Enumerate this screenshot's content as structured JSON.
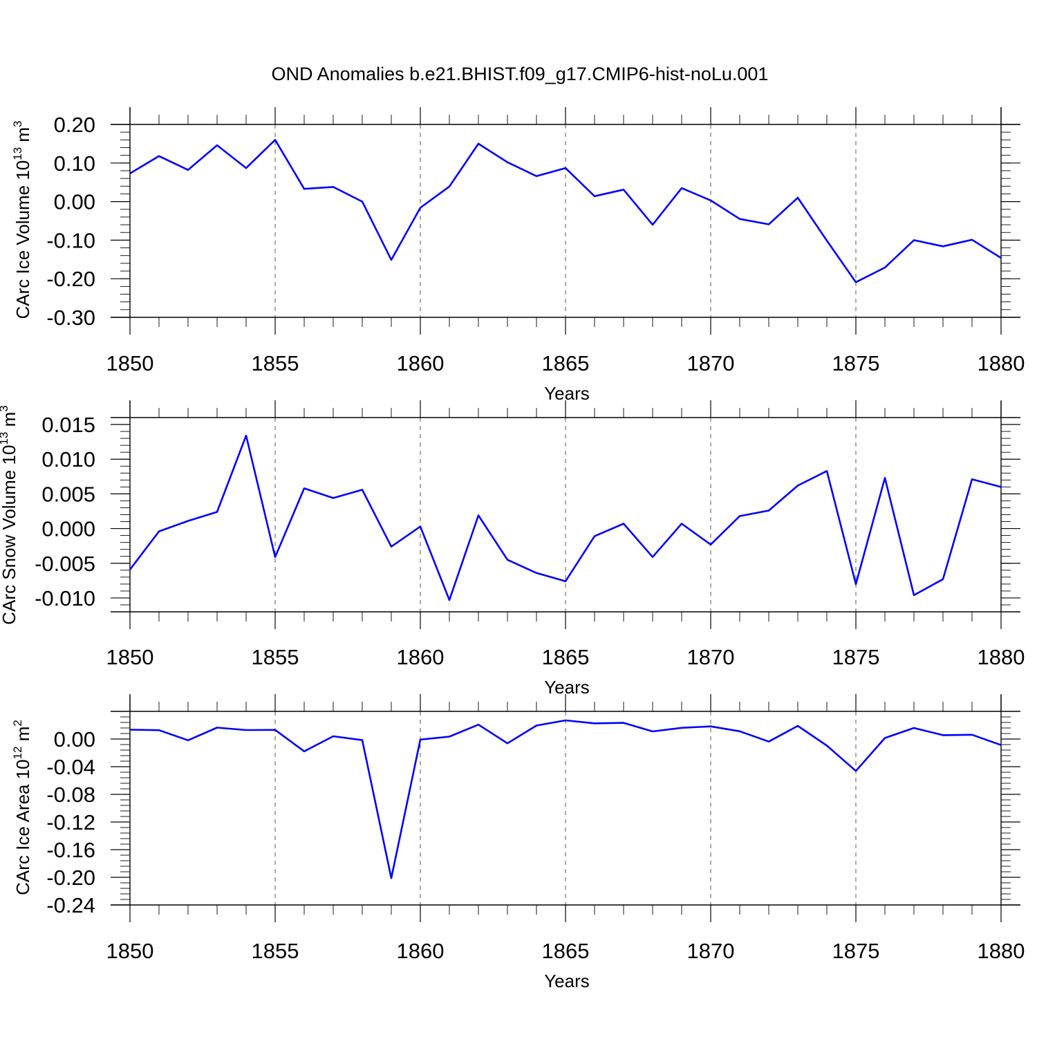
{
  "title": "OND Anomalies b.e21.BHIST.f09_g17.CMIP6-hist-noLu.001",
  "colors": {
    "line": "#0000ff",
    "axis": "#000000",
    "grid": "#555555"
  },
  "chart_data": [
    {
      "type": "line",
      "ylabel": "CArc Ice Volume 10",
      "ylabel_exp": "13",
      "ylabel_unit": " m",
      "ylabel_unit_exp": "3",
      "xlabel": "Years",
      "xlim": [
        1850,
        1880
      ],
      "ylim": [
        -0.3,
        0.2
      ],
      "xticks": [
        1850,
        1855,
        1860,
        1865,
        1870,
        1875,
        1880
      ],
      "xtick_labels": [
        "1850",
        "1855",
        "1860",
        "1865",
        "1870",
        "1875",
        "1880"
      ],
      "yticks": [
        0.2,
        0.1,
        0.0,
        -0.1,
        -0.2,
        -0.3
      ],
      "ytick_labels": [
        "0.20",
        "0.10",
        "0.00",
        "-0.10",
        "-0.20",
        "-0.30"
      ],
      "grid_vertical_dashed": true,
      "series": [
        {
          "x": [
            1850,
            1851,
            1852,
            1853,
            1854,
            1855,
            1856,
            1857,
            1858,
            1859,
            1860,
            1861,
            1862,
            1863,
            1864,
            1865,
            1866,
            1867,
            1868,
            1869,
            1870,
            1871,
            1872,
            1873,
            1874,
            1875,
            1876,
            1877,
            1878,
            1879,
            1880
          ],
          "values": [
            0.073,
            0.118,
            0.082,
            0.146,
            0.087,
            0.16,
            0.033,
            0.038,
            0.0,
            -0.151,
            -0.016,
            0.039,
            0.15,
            0.102,
            0.066,
            0.087,
            0.014,
            0.031,
            -0.06,
            0.035,
            0.003,
            -0.045,
            -0.059,
            0.01,
            -0.101,
            -0.209,
            -0.171,
            -0.1,
            -0.116,
            -0.099,
            -0.146
          ]
        }
      ]
    },
    {
      "type": "line",
      "ylabel": "CArc Snow Volume 10",
      "ylabel_exp": "13",
      "ylabel_unit": " m",
      "ylabel_unit_exp": "3",
      "xlabel": "Years",
      "xlim": [
        1850,
        1880
      ],
      "ylim": [
        -0.012,
        0.016
      ],
      "xticks": [
        1850,
        1855,
        1860,
        1865,
        1870,
        1875,
        1880
      ],
      "xtick_labels": [
        "1850",
        "1855",
        "1860",
        "1865",
        "1870",
        "1875",
        "1880"
      ],
      "yticks": [
        0.015,
        0.01,
        0.005,
        0.0,
        -0.005,
        -0.01
      ],
      "ytick_labels": [
        "0.015",
        "0.010",
        "0.005",
        "0.000",
        "-0.005",
        "-0.010"
      ],
      "grid_vertical_dashed": true,
      "series": [
        {
          "x": [
            1850,
            1851,
            1852,
            1853,
            1854,
            1855,
            1856,
            1857,
            1858,
            1859,
            1860,
            1861,
            1862,
            1863,
            1864,
            1865,
            1866,
            1867,
            1868,
            1869,
            1870,
            1871,
            1872,
            1873,
            1874,
            1875,
            1876,
            1877,
            1878,
            1879,
            1880
          ],
          "values": [
            -0.0059,
            -0.0004,
            0.0011,
            0.0024,
            0.0134,
            -0.0041,
            0.0058,
            0.0044,
            0.0056,
            -0.0026,
            0.0003,
            -0.0103,
            0.0019,
            -0.0045,
            -0.0064,
            -0.0076,
            -0.0011,
            0.0007,
            -0.0041,
            0.0007,
            -0.0023,
            0.0018,
            0.0026,
            0.0062,
            0.0083,
            -0.008,
            0.0073,
            -0.0096,
            -0.0073,
            0.0071,
            0.006
          ]
        }
      ]
    },
    {
      "type": "line",
      "ylabel": "CArc Ice Area 10",
      "ylabel_exp": "12",
      "ylabel_unit": " m",
      "ylabel_unit_exp": "2",
      "xlabel": "Years",
      "xlim": [
        1850,
        1880
      ],
      "ylim": [
        -0.24,
        0.04
      ],
      "xticks": [
        1850,
        1855,
        1860,
        1865,
        1870,
        1875,
        1880
      ],
      "xtick_labels": [
        "1850",
        "1855",
        "1860",
        "1865",
        "1870",
        "1875",
        "1880"
      ],
      "yticks": [
        0.0,
        -0.04,
        -0.08,
        -0.12,
        -0.16,
        -0.2,
        -0.24
      ],
      "ytick_labels": [
        "0.00",
        "-0.04",
        "-0.08",
        "-0.12",
        "-0.16",
        "-0.20",
        "-0.24"
      ],
      "grid_vertical_dashed": true,
      "series": [
        {
          "x": [
            1850,
            1851,
            1852,
            1853,
            1854,
            1855,
            1856,
            1857,
            1858,
            1859,
            1860,
            1861,
            1862,
            1863,
            1864,
            1865,
            1866,
            1867,
            1868,
            1869,
            1870,
            1871,
            1872,
            1873,
            1874,
            1875,
            1876,
            1877,
            1878,
            1879,
            1880
          ],
          "values": [
            0.0135,
            0.0128,
            -0.0018,
            0.0165,
            0.013,
            0.0132,
            -0.0178,
            0.004,
            -0.0016,
            -0.2012,
            -0.0008,
            0.0035,
            0.0208,
            -0.0062,
            0.0195,
            0.027,
            0.0227,
            0.0234,
            0.011,
            0.0162,
            0.0183,
            0.0112,
            -0.0037,
            0.019,
            -0.0095,
            -0.0462,
            0.0015,
            0.016,
            0.0056,
            0.0062,
            -0.0087
          ]
        }
      ]
    }
  ]
}
